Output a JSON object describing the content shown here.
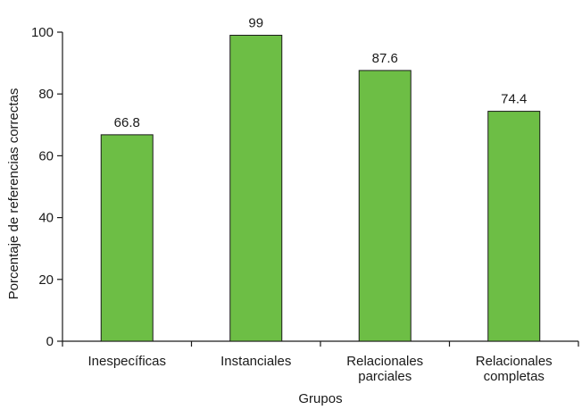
{
  "chart_data": {
    "type": "bar",
    "categories": [
      [
        "Inespecíficas"
      ],
      [
        "Instanciales"
      ],
      [
        "Relacionales",
        "parciales"
      ],
      [
        "Relacionales",
        "completas"
      ]
    ],
    "values": [
      66.8,
      99,
      87.6,
      74.4
    ],
    "data_labels": [
      "66.8",
      "99",
      "87.6",
      "74.4"
    ],
    "xlabel": "Grupos",
    "ylabel": "Porcentaje de referencias correctas",
    "ylim": [
      0,
      100
    ],
    "yticks": [
      0,
      20,
      40,
      60,
      80,
      100
    ],
    "grid": false,
    "legend": "none",
    "colors": {
      "bar_fill": "#6dbe45",
      "bar_stroke": "#1a1a1a",
      "axis": "#1a1a1a"
    }
  }
}
